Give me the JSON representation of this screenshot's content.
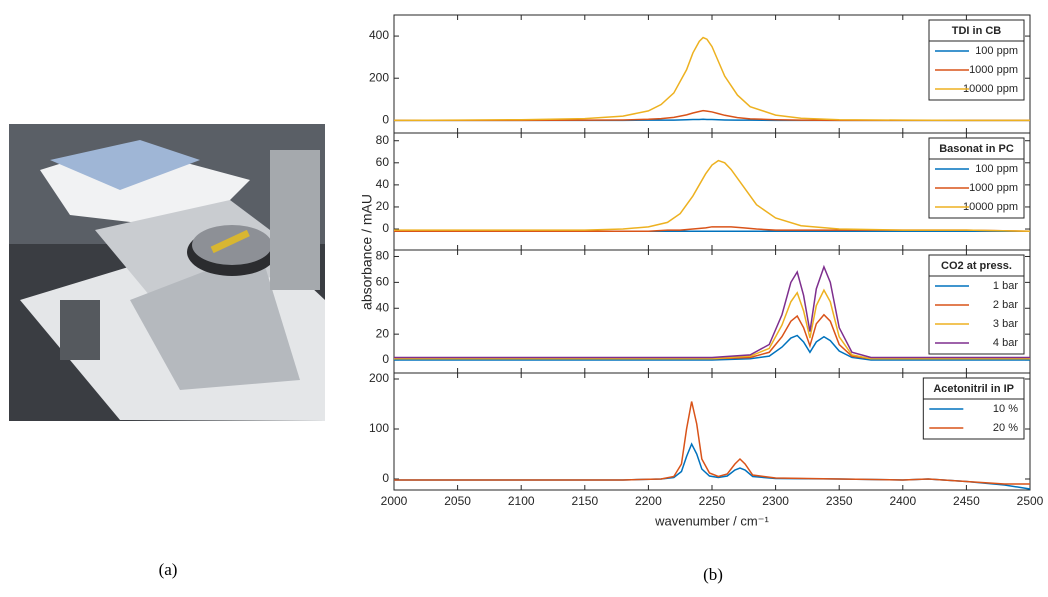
{
  "figure": {
    "label_a": "(a)",
    "label_b": "(b)",
    "ylabel": "absorbance / mAU"
  },
  "chart_data": [
    {
      "type": "line",
      "legend_title": "TDI in CB",
      "legend": "top-right",
      "x": [
        2000,
        2050,
        2100,
        2150,
        2180,
        2200,
        2210,
        2220,
        2230,
        2235,
        2240,
        2243,
        2246,
        2250,
        2255,
        2260,
        2270,
        2280,
        2300,
        2320,
        2350,
        2400,
        2450,
        2500
      ],
      "series": [
        {
          "name": "100 ppm",
          "color": "#0072bd",
          "values": [
            0,
            0,
            0,
            0,
            0,
            1,
            1,
            1,
            3,
            4,
            4,
            5,
            4,
            4,
            3,
            2,
            1,
            1,
            0,
            0,
            0,
            0,
            0,
            0
          ]
        },
        {
          "name": "1000 ppm",
          "color": "#d95319",
          "values": [
            0,
            0,
            0,
            1,
            2,
            5,
            8,
            14,
            26,
            35,
            42,
            46,
            44,
            40,
            32,
            24,
            13,
            7,
            3,
            1,
            0,
            0,
            0,
            0
          ]
        },
        {
          "name": "10000 ppm",
          "color": "#edb120",
          "values": [
            0,
            1,
            3,
            8,
            20,
            45,
            75,
            130,
            240,
            320,
            375,
            393,
            385,
            350,
            280,
            210,
            120,
            65,
            25,
            10,
            3,
            1,
            0,
            0
          ]
        }
      ],
      "xlim": [
        2000,
        2500
      ],
      "xticks": [
        2000,
        2050,
        2100,
        2150,
        2200,
        2250,
        2300,
        2350,
        2400,
        2450,
        2500
      ],
      "ylim": [
        -60,
        500
      ],
      "yticks": [
        0,
        200,
        400
      ]
    },
    {
      "type": "line",
      "legend_title": "Basonat in PC",
      "legend": "top-right",
      "x": [
        2000,
        2050,
        2100,
        2150,
        2180,
        2200,
        2215,
        2225,
        2235,
        2245,
        2250,
        2255,
        2260,
        2265,
        2275,
        2285,
        2300,
        2320,
        2350,
        2400,
        2450,
        2500
      ],
      "series": [
        {
          "name": "100 ppm",
          "color": "#0072bd",
          "values": [
            -2,
            -2,
            -2,
            -2,
            -2,
            -2,
            -2,
            -2,
            -2,
            -2,
            -2,
            -2,
            -2,
            -2,
            -2,
            -2,
            -2,
            -2,
            -2,
            -2,
            -2,
            -2
          ]
        },
        {
          "name": "1000 ppm",
          "color": "#d95319",
          "values": [
            -2,
            -2,
            -2,
            -2,
            -2,
            -2,
            -1,
            -1,
            0,
            1,
            2,
            2,
            2,
            2,
            1,
            0,
            -1,
            -1,
            -1,
            -1,
            -1,
            -2
          ]
        },
        {
          "name": "10000 ppm",
          "color": "#edb120",
          "values": [
            -1,
            -1,
            -1,
            -1,
            0,
            2,
            6,
            14,
            30,
            50,
            58,
            62,
            60,
            54,
            38,
            22,
            10,
            3,
            0,
            -1,
            -1,
            -2
          ]
        }
      ],
      "xlim": [
        2000,
        2500
      ],
      "xticks": [
        2000,
        2050,
        2100,
        2150,
        2200,
        2250,
        2300,
        2350,
        2400,
        2450,
        2500
      ],
      "ylim": [
        -19,
        87
      ],
      "yticks": [
        0,
        20,
        40,
        60,
        80
      ]
    },
    {
      "type": "line",
      "legend_title": "CO2 at press.",
      "legend": "top-right",
      "x": [
        2000,
        2100,
        2200,
        2250,
        2280,
        2295,
        2305,
        2312,
        2317,
        2322,
        2327,
        2332,
        2338,
        2343,
        2350,
        2360,
        2375,
        2400,
        2450,
        2500
      ],
      "series": [
        {
          "name": "1 bar",
          "color": "#0072bd",
          "values": [
            0,
            0,
            0,
            0,
            1,
            3,
            10,
            17,
            19,
            14,
            6,
            14,
            18,
            15,
            7,
            2,
            0,
            0,
            0,
            0
          ]
        },
        {
          "name": "2 bar",
          "color": "#d95319",
          "values": [
            1,
            1,
            1,
            1,
            2,
            6,
            18,
            30,
            34,
            25,
            11,
            28,
            35,
            30,
            12,
            3,
            1,
            1,
            1,
            1
          ]
        },
        {
          "name": "3 bar",
          "color": "#edb120",
          "values": [
            1,
            1,
            1,
            1,
            3,
            9,
            27,
            45,
            52,
            38,
            17,
            42,
            54,
            45,
            18,
            4,
            1,
            1,
            1,
            1
          ]
        },
        {
          "name": "4 bar",
          "color": "#7e2f8e",
          "values": [
            2,
            2,
            2,
            2,
            4,
            12,
            35,
            60,
            68,
            50,
            22,
            55,
            72,
            60,
            25,
            6,
            2,
            2,
            2,
            2
          ]
        }
      ],
      "xlim": [
        2000,
        2500
      ],
      "xticks": [
        2000,
        2050,
        2100,
        2150,
        2200,
        2250,
        2300,
        2350,
        2400,
        2450,
        2500
      ],
      "ylim": [
        -10,
        85
      ],
      "yticks": [
        0,
        20,
        40,
        60,
        80
      ]
    },
    {
      "type": "line",
      "legend_title": "Acetonitril in IP",
      "legend": "top-right",
      "xlabel": "wavenumber / cm⁻¹",
      "x": [
        2000,
        2100,
        2180,
        2210,
        2220,
        2226,
        2230,
        2234,
        2238,
        2242,
        2248,
        2255,
        2262,
        2268,
        2272,
        2276,
        2282,
        2300,
        2350,
        2400,
        2420,
        2450,
        2480,
        2500
      ],
      "series": [
        {
          "name": "10 %",
          "color": "#0072bd",
          "values": [
            -2,
            -2,
            -2,
            0,
            3,
            15,
            45,
            70,
            50,
            20,
            6,
            3,
            6,
            18,
            22,
            18,
            5,
            1,
            0,
            -2,
            0,
            -5,
            -12,
            -20
          ]
        },
        {
          "name": "20 %",
          "color": "#d95319",
          "values": [
            -2,
            -2,
            -2,
            0,
            5,
            30,
            100,
            155,
            110,
            40,
            12,
            5,
            10,
            30,
            40,
            30,
            8,
            2,
            0,
            -2,
            0,
            -5,
            -10,
            -10
          ]
        }
      ],
      "xlim": [
        2000,
        2500
      ],
      "xticks": [
        2000,
        2050,
        2100,
        2150,
        2200,
        2250,
        2300,
        2350,
        2400,
        2450,
        2500
      ],
      "ylim": [
        -22,
        212
      ],
      "yticks": [
        0,
        100,
        200
      ]
    }
  ]
}
